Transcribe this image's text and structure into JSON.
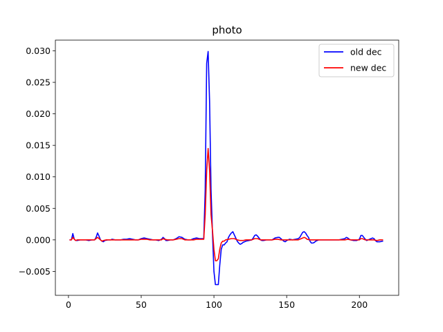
{
  "chart_data": {
    "type": "line",
    "title": "photo",
    "xlabel": "",
    "ylabel": "",
    "xlim": [
      -9,
      227
    ],
    "ylim": [
      -0.0088,
      0.0317
    ],
    "xticks": [
      0,
      50,
      100,
      150,
      200
    ],
    "xtick_labels": [
      "0",
      "50",
      "100",
      "150",
      "200"
    ],
    "yticks": [
      -0.005,
      0.0,
      0.005,
      0.01,
      0.015,
      0.02,
      0.025,
      0.03
    ],
    "ytick_labels": [
      "−0.005",
      "0.000",
      "0.005",
      "0.010",
      "0.015",
      "0.020",
      "0.025",
      "0.030"
    ],
    "grid": false,
    "legend_position": "top-right",
    "series": [
      {
        "name": "old dec",
        "color": "#0000ff",
        "points": [
          [
            1,
            0.0
          ],
          [
            2,
            0.0
          ],
          [
            3,
            0.001
          ],
          [
            4,
            0.0001
          ],
          [
            5,
            -0.0001
          ],
          [
            6,
            -0.0001
          ],
          [
            8,
            0.0
          ],
          [
            10,
            0.0
          ],
          [
            12,
            0.0
          ],
          [
            14,
            -0.0001
          ],
          [
            16,
            0.0
          ],
          [
            18,
            0.0
          ],
          [
            19,
            0.0004
          ],
          [
            20,
            0.0011
          ],
          [
            21,
            0.0006
          ],
          [
            22,
            0.0
          ],
          [
            23,
            -0.0002
          ],
          [
            24,
            -0.0003
          ],
          [
            25,
            -0.0001
          ],
          [
            27,
            0.0
          ],
          [
            29,
            0.0
          ],
          [
            30,
            0.0001
          ],
          [
            32,
            0.0
          ],
          [
            34,
            0.0
          ],
          [
            36,
            0.0
          ],
          [
            38,
            0.0001
          ],
          [
            40,
            0.0001
          ],
          [
            42,
            0.0002
          ],
          [
            44,
            0.0001
          ],
          [
            46,
            0.0
          ],
          [
            48,
            0.0
          ],
          [
            50,
            0.0002
          ],
          [
            52,
            0.0003
          ],
          [
            54,
            0.0002
          ],
          [
            56,
            0.0001
          ],
          [
            58,
            0.0
          ],
          [
            60,
            0.0
          ],
          [
            62,
            -0.0001
          ],
          [
            64,
            0.0001
          ],
          [
            65,
            0.0004
          ],
          [
            66,
            0.0002
          ],
          [
            67,
            -0.0001
          ],
          [
            68,
            -0.0001
          ],
          [
            70,
            0.0
          ],
          [
            72,
            0.0
          ],
          [
            74,
            0.0002
          ],
          [
            76,
            0.0005
          ],
          [
            78,
            0.0004
          ],
          [
            80,
            0.0001
          ],
          [
            82,
            0.0
          ],
          [
            84,
            0.0
          ],
          [
            86,
            0.0002
          ],
          [
            88,
            0.0003
          ],
          [
            90,
            0.0002
          ],
          [
            92,
            0.0002
          ],
          [
            93,
            0.0002
          ],
          [
            94,
            0.008
          ],
          [
            95,
            0.028
          ],
          [
            96,
            0.0299
          ],
          [
            97,
            0.022
          ],
          [
            98,
            0.008
          ],
          [
            99,
            0.001
          ],
          [
            100,
            -0.005
          ],
          [
            101,
            -0.0071
          ],
          [
            102,
            -0.0071
          ],
          [
            103,
            -0.0071
          ],
          [
            104,
            -0.004
          ],
          [
            105,
            -0.0015
          ],
          [
            106,
            -0.0008
          ],
          [
            107,
            -0.0008
          ],
          [
            108,
            -0.0005
          ],
          [
            109,
            -0.0003
          ],
          [
            110,
            0.0004
          ],
          [
            111,
            0.0008
          ],
          [
            112,
            0.0011
          ],
          [
            113,
            0.0013
          ],
          [
            114,
            0.0008
          ],
          [
            115,
            0.0003
          ],
          [
            116,
            -0.0002
          ],
          [
            117,
            -0.0005
          ],
          [
            118,
            -0.0007
          ],
          [
            119,
            -0.0006
          ],
          [
            120,
            -0.0004
          ],
          [
            122,
            -0.0002
          ],
          [
            124,
            -0.0001
          ],
          [
            126,
            0.0
          ],
          [
            127,
            0.0003
          ],
          [
            128,
            0.0007
          ],
          [
            129,
            0.0008
          ],
          [
            130,
            0.0006
          ],
          [
            131,
            0.0003
          ],
          [
            132,
            0.0
          ],
          [
            133,
            -0.0001
          ],
          [
            134,
            -0.0001
          ],
          [
            136,
            0.0
          ],
          [
            138,
            0.0
          ],
          [
            140,
            0.0
          ],
          [
            142,
            0.0003
          ],
          [
            144,
            0.0004
          ],
          [
            145,
            0.0004
          ],
          [
            146,
            0.0002
          ],
          [
            147,
            0.0
          ],
          [
            148,
            -0.0002
          ],
          [
            149,
            -0.0003
          ],
          [
            150,
            -0.0001
          ],
          [
            152,
            0.0001
          ],
          [
            154,
            0.0
          ],
          [
            156,
            0.0001
          ],
          [
            158,
            0.0002
          ],
          [
            159,
            0.0004
          ],
          [
            160,
            0.0008
          ],
          [
            161,
            0.0012
          ],
          [
            162,
            0.0013
          ],
          [
            163,
            0.0011
          ],
          [
            164,
            0.0007
          ],
          [
            165,
            0.0004
          ],
          [
            166,
            -0.0002
          ],
          [
            167,
            -0.0005
          ],
          [
            168,
            -0.0005
          ],
          [
            169,
            -0.0004
          ],
          [
            170,
            -0.0002
          ],
          [
            172,
            0.0
          ],
          [
            174,
            0.0
          ],
          [
            176,
            0.0
          ],
          [
            178,
            0.0
          ],
          [
            180,
            0.0
          ],
          [
            182,
            0.0
          ],
          [
            184,
            0.0
          ],
          [
            186,
            0.0
          ],
          [
            188,
            0.0001
          ],
          [
            190,
            0.0002
          ],
          [
            191,
            0.0004
          ],
          [
            192,
            0.0003
          ],
          [
            193,
            0.0001
          ],
          [
            194,
            0.0
          ],
          [
            196,
            -0.0001
          ],
          [
            198,
            -0.0001
          ],
          [
            200,
            0.0001
          ],
          [
            201,
            0.0007
          ],
          [
            202,
            0.0007
          ],
          [
            203,
            0.0004
          ],
          [
            204,
            0.0001
          ],
          [
            205,
            -0.0001
          ],
          [
            206,
            0.0
          ],
          [
            208,
            0.0002
          ],
          [
            209,
            0.0003
          ],
          [
            210,
            0.0002
          ],
          [
            211,
            -0.0001
          ],
          [
            212,
            -0.0003
          ],
          [
            214,
            -0.0003
          ],
          [
            216,
            -0.0002
          ]
        ]
      },
      {
        "name": "new dec",
        "color": "#ff0000",
        "points": [
          [
            1,
            0.0
          ],
          [
            2,
            0.0
          ],
          [
            3,
            0.0004
          ],
          [
            4,
            0.0001
          ],
          [
            5,
            -0.0001
          ],
          [
            6,
            0.0
          ],
          [
            8,
            0.0
          ],
          [
            10,
            0.0
          ],
          [
            12,
            0.0
          ],
          [
            14,
            0.0
          ],
          [
            16,
            0.0
          ],
          [
            18,
            0.0
          ],
          [
            19,
            0.0002
          ],
          [
            20,
            0.0004
          ],
          [
            21,
            0.0002
          ],
          [
            22,
            0.0
          ],
          [
            23,
            -0.0002
          ],
          [
            24,
            -0.0001
          ],
          [
            26,
            0.0
          ],
          [
            28,
            0.0
          ],
          [
            30,
            0.0
          ],
          [
            32,
            0.0
          ],
          [
            34,
            0.0
          ],
          [
            36,
            0.0
          ],
          [
            38,
            0.0
          ],
          [
            40,
            0.0
          ],
          [
            42,
            0.0
          ],
          [
            44,
            0.0
          ],
          [
            46,
            0.0
          ],
          [
            48,
            0.0
          ],
          [
            50,
            0.0001
          ],
          [
            52,
            0.0001
          ],
          [
            54,
            0.0001
          ],
          [
            56,
            0.0
          ],
          [
            58,
            0.0
          ],
          [
            60,
            0.0
          ],
          [
            62,
            0.0
          ],
          [
            64,
            0.0
          ],
          [
            65,
            0.0002
          ],
          [
            66,
            0.0001
          ],
          [
            68,
            0.0
          ],
          [
            70,
            0.0
          ],
          [
            72,
            0.0
          ],
          [
            74,
            0.0001
          ],
          [
            76,
            0.0002
          ],
          [
            78,
            0.0002
          ],
          [
            80,
            0.0
          ],
          [
            82,
            0.0
          ],
          [
            84,
            0.0
          ],
          [
            86,
            0.0
          ],
          [
            88,
            0.0001
          ],
          [
            90,
            0.0001
          ],
          [
            92,
            0.0001
          ],
          [
            93,
            0.0001
          ],
          [
            94,
            0.004
          ],
          [
            95,
            0.011
          ],
          [
            96,
            0.0145
          ],
          [
            97,
            0.011
          ],
          [
            98,
            0.004
          ],
          [
            99,
            0.0015
          ],
          [
            100,
            -0.0015
          ],
          [
            101,
            -0.0033
          ],
          [
            102,
            -0.0033
          ],
          [
            103,
            -0.003
          ],
          [
            104,
            -0.0015
          ],
          [
            105,
            -0.0005
          ],
          [
            106,
            -0.0002
          ],
          [
            107,
            -0.0002
          ],
          [
            108,
            0.0
          ],
          [
            110,
            0.0001
          ],
          [
            112,
            0.0002
          ],
          [
            114,
            0.0002
          ],
          [
            116,
            0.0
          ],
          [
            118,
            -0.0001
          ],
          [
            120,
            -0.0001
          ],
          [
            122,
            0.0
          ],
          [
            124,
            0.0
          ],
          [
            126,
            0.0
          ],
          [
            128,
            0.0002
          ],
          [
            130,
            0.0002
          ],
          [
            132,
            0.0
          ],
          [
            134,
            0.0
          ],
          [
            136,
            0.0
          ],
          [
            138,
            0.0
          ],
          [
            140,
            0.0
          ],
          [
            142,
            0.0001
          ],
          [
            144,
            0.0001
          ],
          [
            146,
            0.0
          ],
          [
            148,
            0.0
          ],
          [
            150,
            0.0
          ],
          [
            152,
            0.0
          ],
          [
            154,
            0.0
          ],
          [
            156,
            0.0
          ],
          [
            158,
            0.0
          ],
          [
            160,
            0.0002
          ],
          [
            161,
            0.0003
          ],
          [
            162,
            0.0004
          ],
          [
            163,
            0.0003
          ],
          [
            164,
            0.0001
          ],
          [
            166,
            0.0
          ],
          [
            168,
            0.0
          ],
          [
            170,
            0.0
          ],
          [
            172,
            0.0
          ],
          [
            174,
            0.0
          ],
          [
            176,
            0.0
          ],
          [
            178,
            0.0
          ],
          [
            180,
            0.0
          ],
          [
            182,
            0.0
          ],
          [
            184,
            0.0
          ],
          [
            186,
            0.0
          ],
          [
            188,
            0.0
          ],
          [
            190,
            0.0
          ],
          [
            192,
            0.0001
          ],
          [
            194,
            0.0
          ],
          [
            196,
            0.0
          ],
          [
            198,
            0.0
          ],
          [
            200,
            0.0
          ],
          [
            201,
            0.0002
          ],
          [
            202,
            0.0002
          ],
          [
            204,
            0.0
          ],
          [
            206,
            0.0
          ],
          [
            208,
            0.0
          ],
          [
            210,
            0.0
          ],
          [
            212,
            -0.0001
          ],
          [
            214,
            0.0
          ],
          [
            216,
            0.0
          ]
        ]
      }
    ]
  }
}
